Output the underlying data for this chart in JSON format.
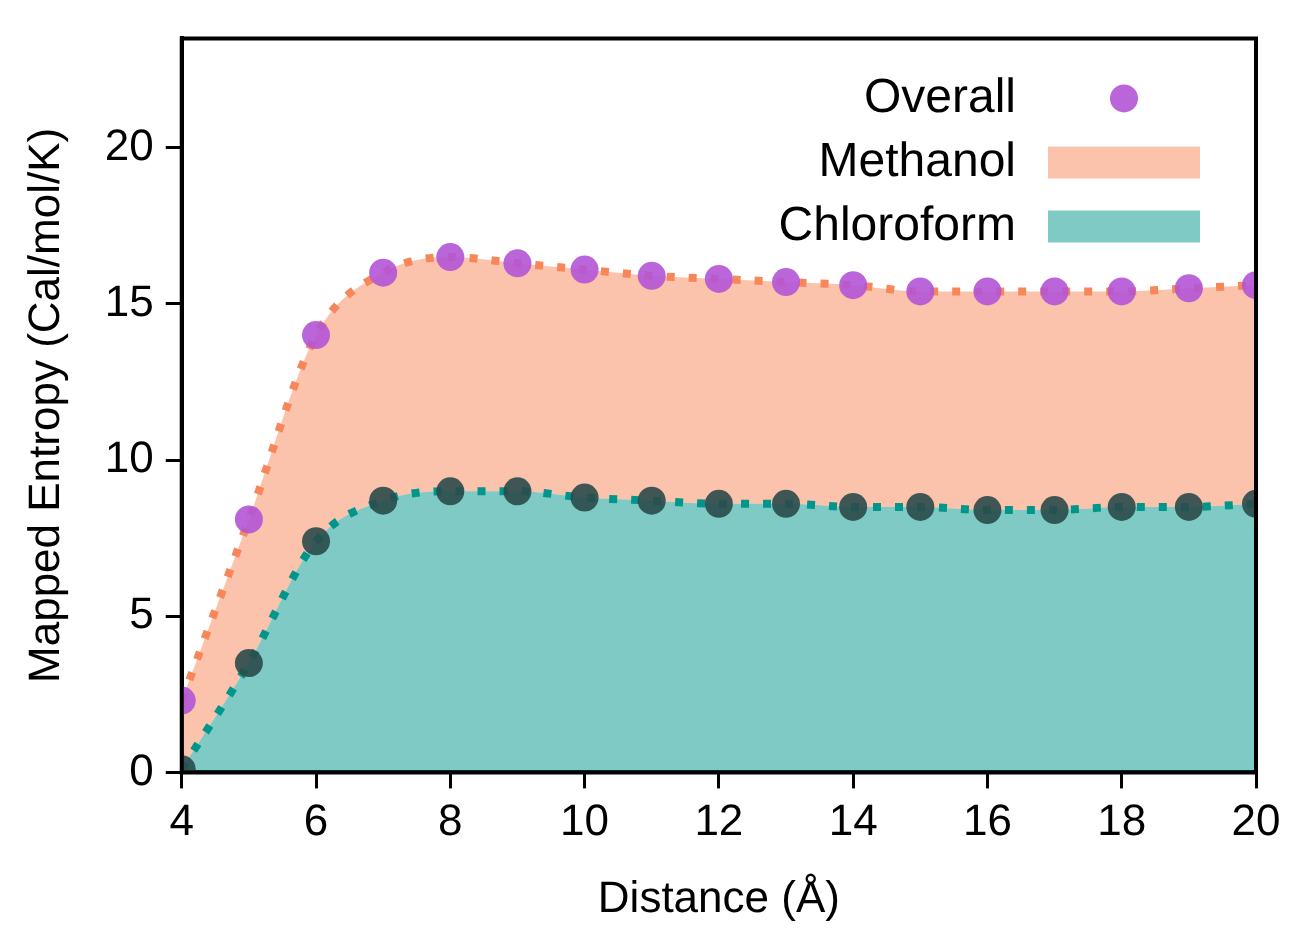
{
  "chart_data": {
    "type": "area",
    "xlabel": "Distance (Å)",
    "ylabel": "Mapped Entropy (Cal/mol/K)",
    "x": [
      4,
      5,
      6,
      7,
      8,
      9,
      10,
      11,
      12,
      13,
      14,
      15,
      16,
      17,
      18,
      19,
      20
    ],
    "xlim": [
      4,
      20
    ],
    "xticks": [
      4,
      6,
      8,
      10,
      12,
      14,
      16,
      18,
      20
    ],
    "ylim": [
      0,
      23.5
    ],
    "yticks": [
      0,
      5,
      10,
      15,
      20
    ],
    "stacked": true,
    "grid": false,
    "legend": "top right",
    "line_style": "dotted",
    "series": [
      {
        "name": "Chloroform",
        "type": "area",
        "color": "#00968c",
        "values": [
          0.1,
          3.5,
          7.4,
          8.7,
          9.0,
          9.0,
          8.8,
          8.7,
          8.6,
          8.6,
          8.5,
          8.5,
          8.4,
          8.4,
          8.5,
          8.5,
          8.6
        ]
      },
      {
        "name": "Methanol",
        "type": "area",
        "color": "#f7875a",
        "values": [
          2.2,
          4.6,
          6.6,
          7.3,
          7.5,
          7.3,
          7.3,
          7.2,
          7.2,
          7.1,
          7.1,
          6.9,
          7.0,
          7.0,
          6.9,
          7.0,
          7.0
        ]
      },
      {
        "type": "scatter",
        "marker": "circle",
        "color": "#2a4a4a",
        "values": [
          0.1,
          3.5,
          7.4,
          8.7,
          9.0,
          9.0,
          8.8,
          8.7,
          8.6,
          8.6,
          8.5,
          8.5,
          8.4,
          8.4,
          8.5,
          8.5,
          8.6
        ]
      },
      {
        "name": "Overall",
        "type": "scatter",
        "marker": "circle",
        "color": "#b355d6",
        "values": [
          2.3,
          8.1,
          14.0,
          16.0,
          16.5,
          16.3,
          16.1,
          15.9,
          15.8,
          15.7,
          15.6,
          15.4,
          15.4,
          15.4,
          15.4,
          15.5,
          15.6
        ]
      }
    ]
  }
}
